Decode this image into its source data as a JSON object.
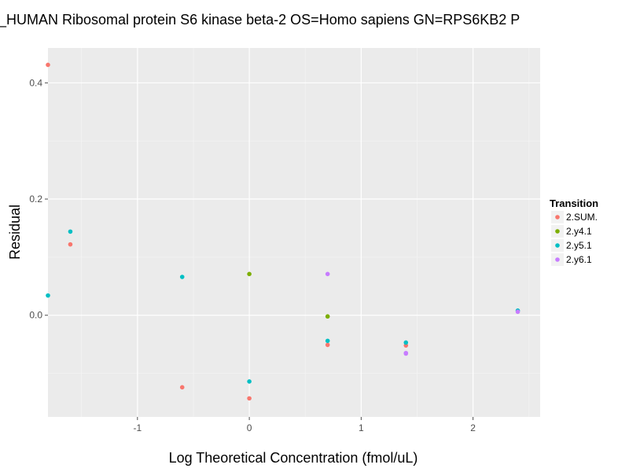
{
  "chart_data": {
    "type": "scatter",
    "title": "_HUMAN Ribosomal protein S6 kinase beta-2 OS=Homo sapiens GN=RPS6KB2 P",
    "xlabel": "Log Theoretical Concentration (fmol/uL)",
    "ylabel": "Residual",
    "xlim": [
      -1.8,
      2.6
    ],
    "ylim": [
      -0.175,
      0.46
    ],
    "x_ticks": [
      -1,
      0,
      1,
      2
    ],
    "x_tick_labels": [
      "-1",
      "0",
      "1",
      "2"
    ],
    "y_ticks": [
      0.0,
      0.2,
      0.4
    ],
    "y_tick_labels": [
      "0.0",
      "0.2",
      "0.4"
    ],
    "grid": true,
    "legend": {
      "title": "Transition",
      "position": "right"
    },
    "series": [
      {
        "name": "2.SUM.",
        "color": "#F8766D",
        "points": [
          {
            "x": -1.8,
            "y": 0.431
          },
          {
            "x": -1.6,
            "y": 0.122
          },
          {
            "x": -0.6,
            "y": -0.124
          },
          {
            "x": 0.0,
            "y": -0.143
          },
          {
            "x": 0.7,
            "y": -0.051
          },
          {
            "x": 1.4,
            "y": -0.052
          }
        ]
      },
      {
        "name": "2.y4.1",
        "color": "#7CAE00",
        "points": [
          {
            "x": 0.0,
            "y": 0.071
          },
          {
            "x": 0.7,
            "y": -0.002
          }
        ]
      },
      {
        "name": "2.y5.1",
        "color": "#00BFC4",
        "points": [
          {
            "x": -1.8,
            "y": 0.034
          },
          {
            "x": -1.6,
            "y": 0.144
          },
          {
            "x": -0.6,
            "y": 0.066
          },
          {
            "x": 0.0,
            "y": -0.114
          },
          {
            "x": 0.7,
            "y": -0.044
          },
          {
            "x": 1.4,
            "y": -0.047
          },
          {
            "x": 2.4,
            "y": 0.008
          }
        ]
      },
      {
        "name": "2.y6.1",
        "color": "#C77CFF",
        "points": [
          {
            "x": 0.7,
            "y": 0.071
          },
          {
            "x": 1.4,
            "y": -0.065
          },
          {
            "x": 1.4,
            "y": -0.066
          },
          {
            "x": 2.4,
            "y": 0.006
          }
        ]
      }
    ]
  },
  "style": {
    "panel_color": "#EBEBEB",
    "grid_major_color": "#FFFFFF",
    "grid_minor_color": "#F5F5F5",
    "tick_color": "#4D4D4D"
  }
}
